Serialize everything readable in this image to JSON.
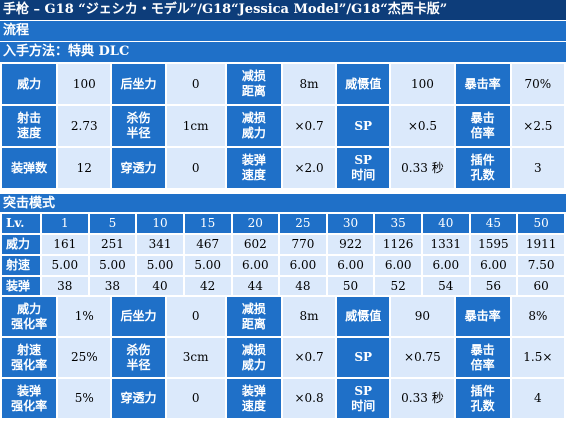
{
  "title": "手枪 – G18 “ジェシカ・モデル”/G18“Jessica Model”/G18“杰西卡版”",
  "flow_label": "流程",
  "acquire_label": "入手方法：特典 DLC",
  "base_table": [
    [
      {
        "h": "威力"
      },
      {
        "v": "100"
      },
      {
        "h": "后坐力"
      },
      {
        "v": "0"
      },
      {
        "h": "减损\n距离"
      },
      {
        "v": "8m"
      },
      {
        "h": "威慑值"
      },
      {
        "v": "100"
      },
      {
        "h": "暴击率"
      },
      {
        "v": "70%"
      }
    ],
    [
      {
        "h": "射击\n速度"
      },
      {
        "v": "2.73"
      },
      {
        "h": "杀伤\n半径"
      },
      {
        "v": "1cm"
      },
      {
        "h": "减损\n威力"
      },
      {
        "v": "×0.7"
      },
      {
        "h": "SP"
      },
      {
        "v": "×0.5"
      },
      {
        "h": "暴击\n倍率"
      },
      {
        "v": "×2.5"
      }
    ],
    [
      {
        "h": "装弹数"
      },
      {
        "v": "12"
      },
      {
        "h": "穿透力"
      },
      {
        "v": "0"
      },
      {
        "h": "装弹\n速度"
      },
      {
        "v": "×2.0"
      },
      {
        "h": "SP\n时间"
      },
      {
        "v": "0.33 秒"
      },
      {
        "h": "插件\n孔数"
      },
      {
        "v": "3"
      }
    ]
  ],
  "assault_label": "突击模式",
  "stats": {
    "lv_label": "Lv.",
    "levels": [
      "1",
      "5",
      "10",
      "15",
      "20",
      "25",
      "30",
      "35",
      "40",
      "45",
      "50"
    ],
    "rows": [
      {
        "label": "威力",
        "values": [
          "161",
          "251",
          "341",
          "467",
          "602",
          "770",
          "922",
          "1126",
          "1331",
          "1595",
          "1911"
        ]
      },
      {
        "label": "射速",
        "values": [
          "5.00",
          "5.00",
          "5.00",
          "5.00",
          "6.00",
          "6.00",
          "6.00",
          "6.00",
          "6.00",
          "6.00",
          "7.50"
        ]
      },
      {
        "label": "装弹",
        "values": [
          "38",
          "38",
          "40",
          "42",
          "44",
          "48",
          "50",
          "52",
          "54",
          "56",
          "60"
        ]
      }
    ]
  },
  "bonus_table": [
    [
      {
        "h": "威力\n强化率"
      },
      {
        "v": "1%"
      },
      {
        "h": "后坐力"
      },
      {
        "v": "0"
      },
      {
        "h": "减损\n距离"
      },
      {
        "v": "8m"
      },
      {
        "h": "威慑值"
      },
      {
        "v": "90"
      },
      {
        "h": "暴击率"
      },
      {
        "v": "8%"
      }
    ],
    [
      {
        "h": "射速\n强化率"
      },
      {
        "v": "25%"
      },
      {
        "h": "杀伤\n半径"
      },
      {
        "v": "3cm"
      },
      {
        "h": "减损\n威力"
      },
      {
        "v": "×0.7"
      },
      {
        "h": "SP"
      },
      {
        "v": "×0.75"
      },
      {
        "h": "暴击\n倍率"
      },
      {
        "v": "1.5×"
      }
    ],
    [
      {
        "h": "装弹\n强化率"
      },
      {
        "v": "5%"
      },
      {
        "h": "穿透力"
      },
      {
        "v": "0"
      },
      {
        "h": "装弹\n速度"
      },
      {
        "v": "×0.8"
      },
      {
        "h": "SP\n时间"
      },
      {
        "v": "0.33 秒"
      },
      {
        "h": "插件\n孔数"
      },
      {
        "v": "4"
      }
    ]
  ]
}
